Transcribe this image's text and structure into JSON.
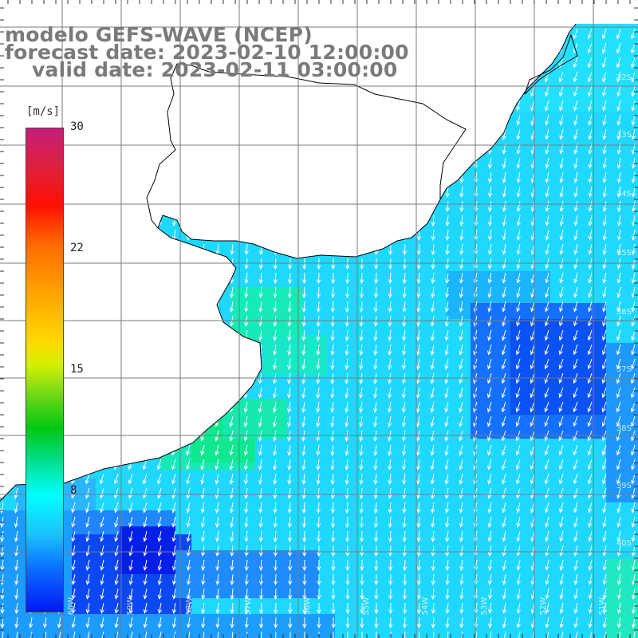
{
  "header": {
    "line1": "modelo GEFS-WAVE (NCEP)",
    "line2": "forecast date: 2023-02-10 12:00:00",
    "line3": "valid date: 2023-02-11 03:00:00"
  },
  "colorbar": {
    "unit": "[m/s]",
    "ticks": [
      {
        "label": "30",
        "value": 30
      },
      {
        "label": "22",
        "value": 22
      },
      {
        "label": "15",
        "value": 15
      },
      {
        "label": "8",
        "value": 8
      }
    ],
    "range": [
      0,
      30
    ],
    "colors": [
      "#0018f8",
      "#0a70ff",
      "#1cc2ff",
      "#00ffff",
      "#00e090",
      "#00c810",
      "#72d818",
      "#ffd800",
      "#ff9e00",
      "#ff6a00",
      "#ff1000",
      "#e0203c",
      "#c41e7a"
    ]
  },
  "grid_labels": {
    "latitude": [
      "32S",
      "33S",
      "34S",
      "35S",
      "36S",
      "37S",
      "38S",
      "39S",
      "40S"
    ],
    "longitude": [
      "60W",
      "59W",
      "58W",
      "57W",
      "56W",
      "55W",
      "54W",
      "53W",
      "52W",
      "51W"
    ]
  },
  "map_colors": {
    "land": "#ffffff",
    "coast": "#000000",
    "grid": "#7a7a7a",
    "arrows": "#ffffff"
  },
  "wind_field": {
    "dominant_direction": "from north-northeast",
    "max_region": "green area off the coast, about 13 m/s",
    "min_region": "dark blue area in the southwest and east, about 3 m/s"
  }
}
